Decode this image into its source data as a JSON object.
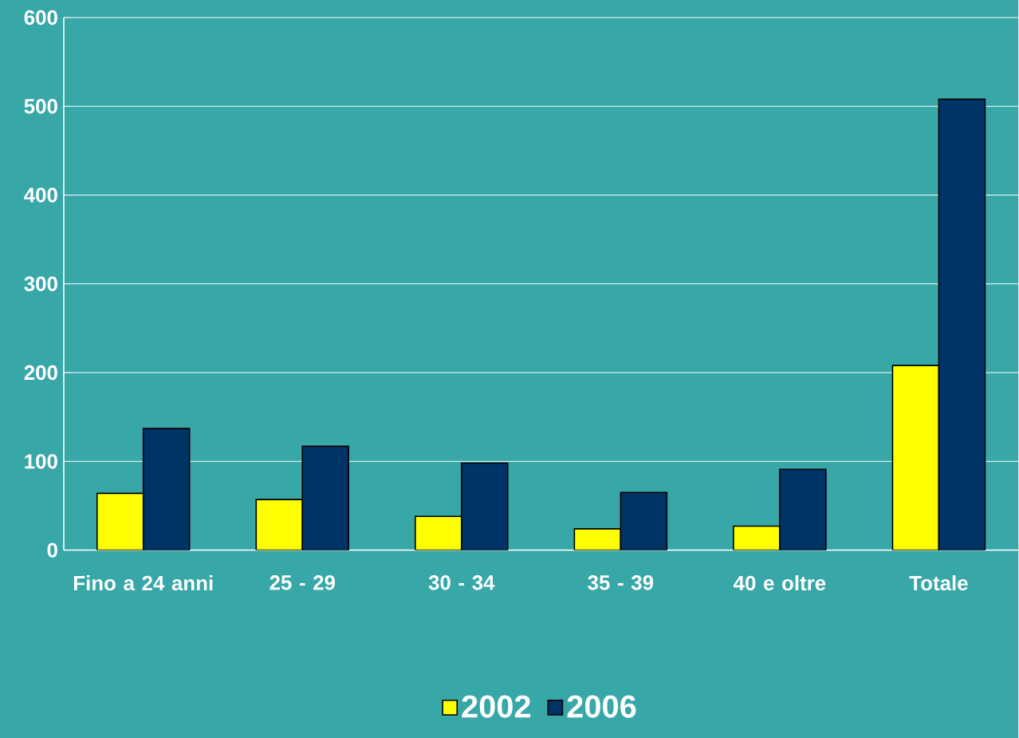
{
  "chart_data": {
    "type": "bar",
    "categories": [
      "Fino a 24 anni",
      "25 - 29",
      "30 - 34",
      "35 - 39",
      "40 e oltre",
      "Totale"
    ],
    "series": [
      {
        "name": "2002",
        "color": "#ffff00",
        "values": [
          64,
          57,
          38,
          24,
          27,
          208
        ]
      },
      {
        "name": "2006",
        "color": "#003366",
        "values": [
          137,
          117,
          98,
          65,
          91,
          508
        ]
      }
    ],
    "ylim": [
      0,
      600
    ],
    "yticks": [
      0,
      100,
      200,
      300,
      400,
      500,
      600
    ],
    "grid": "y",
    "legend": "bottom"
  }
}
